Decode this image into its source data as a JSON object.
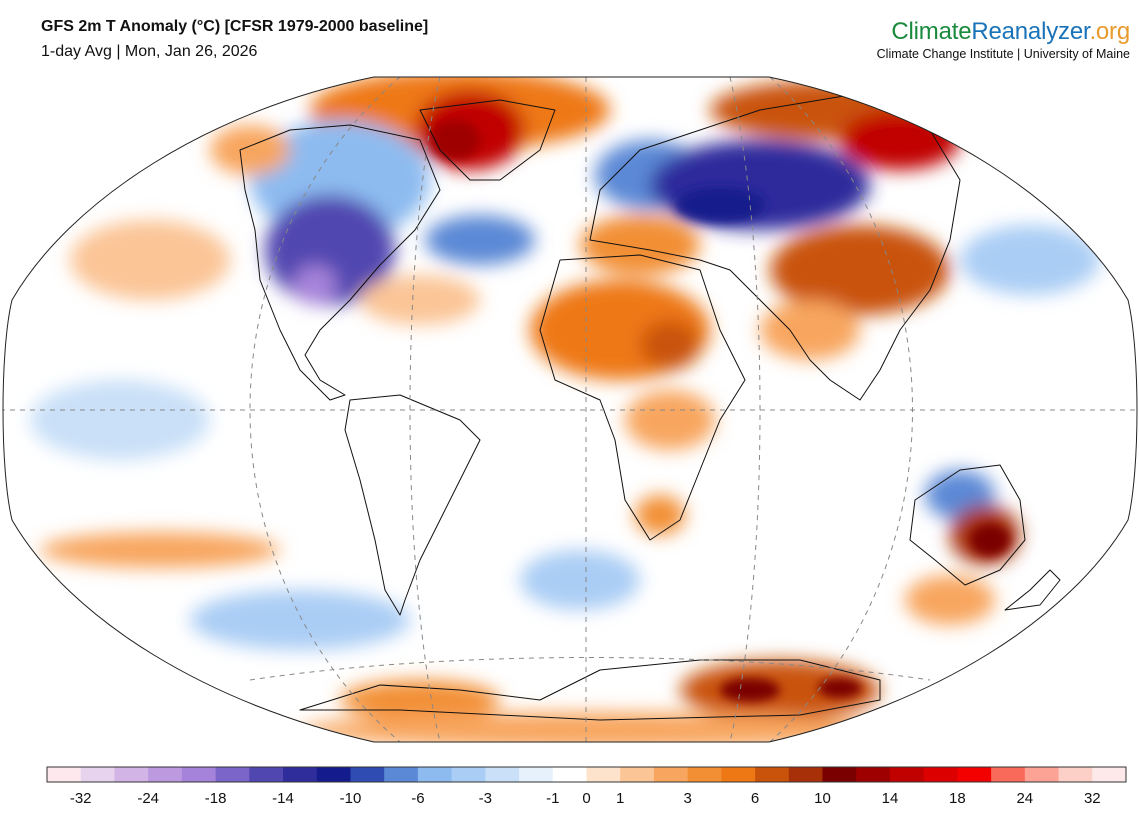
{
  "header": {
    "title": "GFS 2m T Anomaly (°C) [CFSR 1979-2000 baseline]",
    "subtitle": "1-day Avg | Mon, Jan 26, 2026"
  },
  "brand": {
    "logo_part1": "Climate",
    "logo_part2": "Reanalyzer",
    "logo_part3": ".org",
    "logo_colors": [
      "#1a8a3c",
      "#1a73b8",
      "#e89a2c"
    ],
    "tagline": "Climate Change Institute | University of Maine"
  },
  "colorbar": {
    "unit": "°C",
    "colors": [
      "#fde8ee",
      "#e8d3ee",
      "#d2b4e6",
      "#bd99e0",
      "#a683da",
      "#7b65c9",
      "#5147b0",
      "#2f2c9c",
      "#141b8c",
      "#2f4cb3",
      "#5c89d6",
      "#8dbbf0",
      "#aacdf5",
      "#c9e0f8",
      "#e6f1fb",
      "#ffffff",
      "#fde3cc",
      "#fbc596",
      "#f8a65f",
      "#f28f35",
      "#ee7814",
      "#c9530a",
      "#a83008",
      "#7a0000",
      "#9e0000",
      "#c10000",
      "#dd0000",
      "#f30000",
      "#fa6a5b",
      "#fca396",
      "#fdd0c7",
      "#fde8ea"
    ],
    "tick_labels": [
      {
        "label": "-32",
        "index": 1
      },
      {
        "label": "-24",
        "index": 3
      },
      {
        "label": "-18",
        "index": 5
      },
      {
        "label": "-14",
        "index": 7
      },
      {
        "label": "-10",
        "index": 9
      },
      {
        "label": "-6",
        "index": 11
      },
      {
        "label": "-3",
        "index": 13
      },
      {
        "label": "-1",
        "index": 15
      },
      {
        "label": "0",
        "index": 16
      },
      {
        "label": "1",
        "index": 17
      },
      {
        "label": "3",
        "index": 19
      },
      {
        "label": "6",
        "index": 21
      },
      {
        "label": "10",
        "index": 23
      },
      {
        "label": "14",
        "index": 25
      },
      {
        "label": "18",
        "index": 27
      },
      {
        "label": "24",
        "index": 29
      },
      {
        "label": "32",
        "index": 31
      }
    ]
  },
  "map": {
    "projection": "Winkel tripel (world)",
    "ocean_background": "#ffffff",
    "coastline_color": "#111111",
    "graticule_color": "#888888",
    "anomaly_regions": [
      {
        "name": "arctic-greenland-warm",
        "color": "#a83008"
      },
      {
        "name": "greenland-hot-core",
        "color": "#c10000"
      },
      {
        "name": "north-america-cold",
        "color": "#5147b0"
      },
      {
        "name": "north-america-extreme-cold",
        "color": "#a683da"
      },
      {
        "name": "north-atlantic-cold",
        "color": "#5c89d6"
      },
      {
        "name": "siberia-cold",
        "color": "#2f2c9c"
      },
      {
        "name": "east-siberia-warm",
        "color": "#c10000"
      },
      {
        "name": "north-africa-warm",
        "color": "#ee7814"
      },
      {
        "name": "china-warm",
        "color": "#c9530a"
      },
      {
        "name": "australia-warm",
        "color": "#a83008"
      },
      {
        "name": "antarctica-warm",
        "color": "#c9530a"
      }
    ]
  }
}
